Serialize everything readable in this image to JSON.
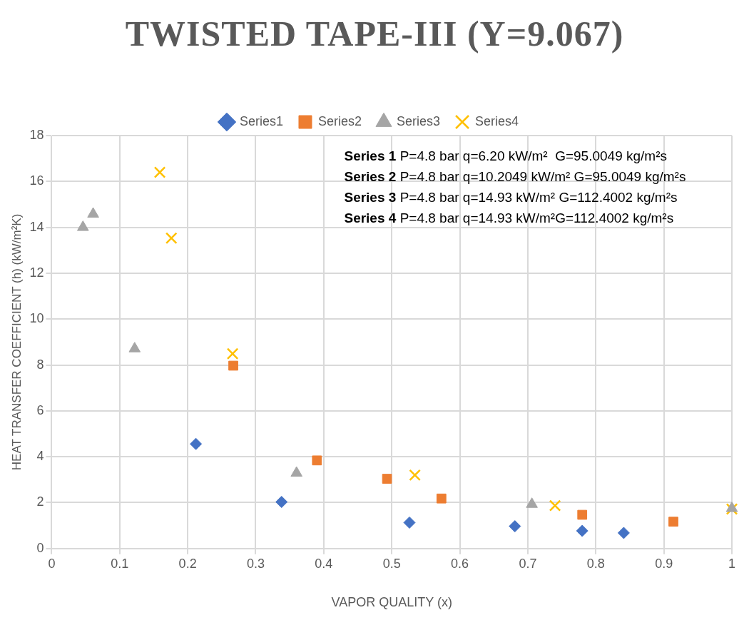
{
  "chart_data": {
    "type": "scatter",
    "title": "TWISTED TAPE-III (Y=9.067)",
    "xlabel": "VAPOR QUALITY (x)",
    "ylabel": "HEAT TRANSFER COEFFICIENT (h) (kW/m²K)",
    "xlim": [
      0,
      1
    ],
    "xticks": [
      0,
      0.1,
      0.2,
      0.3,
      0.4,
      0.5,
      0.6,
      0.7,
      0.8,
      0.9,
      1
    ],
    "ylim": [
      0,
      18
    ],
    "yticks": [
      0,
      2,
      4,
      6,
      8,
      10,
      12,
      14,
      16,
      18
    ],
    "grid": true,
    "legend": "top",
    "annotations": [
      "Series 1 P=4.8 bar q=6.20 kW/m²  G=95.0049 kg/m²s",
      "Series 2 P=4.8 bar q=10.2049 kW/m² G=95.0049 kg/m²s",
      "Series 3 P=4.8 bar q=14.93 kW/m² G=112.4002 kg/m²s",
      "Series 4 P=4.8 bar q=14.93 kW/m²G=112.4002 kg/m²s"
    ],
    "series": [
      {
        "name": "Series1",
        "color": "#4472c4",
        "marker": "diamond",
        "x": [
          0.212,
          0.338,
          0.526,
          0.681,
          0.78,
          0.841
        ],
        "values": [
          4.56,
          2.03,
          1.13,
          0.97,
          0.77,
          0.68
        ]
      },
      {
        "name": "Series2",
        "color": "#ed7d31",
        "marker": "square",
        "x": [
          0.267,
          0.39,
          0.493,
          0.573,
          0.78,
          0.914
        ],
        "values": [
          7.97,
          3.84,
          3.04,
          2.18,
          1.47,
          1.17
        ]
      },
      {
        "name": "Series3",
        "color": "#a5a5a5",
        "marker": "triangle",
        "x": [
          0.046,
          0.061,
          0.122,
          0.36,
          0.706,
          1.0
        ],
        "values": [
          14.0,
          14.58,
          8.71,
          3.29,
          1.93,
          1.75
        ]
      },
      {
        "name": "Series4",
        "color": "#ffc000",
        "marker": "cross",
        "x": [
          0.159,
          0.176,
          0.266,
          0.534,
          0.74,
          1.0
        ],
        "values": [
          16.4,
          13.53,
          8.49,
          3.2,
          1.87,
          1.72
        ]
      }
    ]
  }
}
